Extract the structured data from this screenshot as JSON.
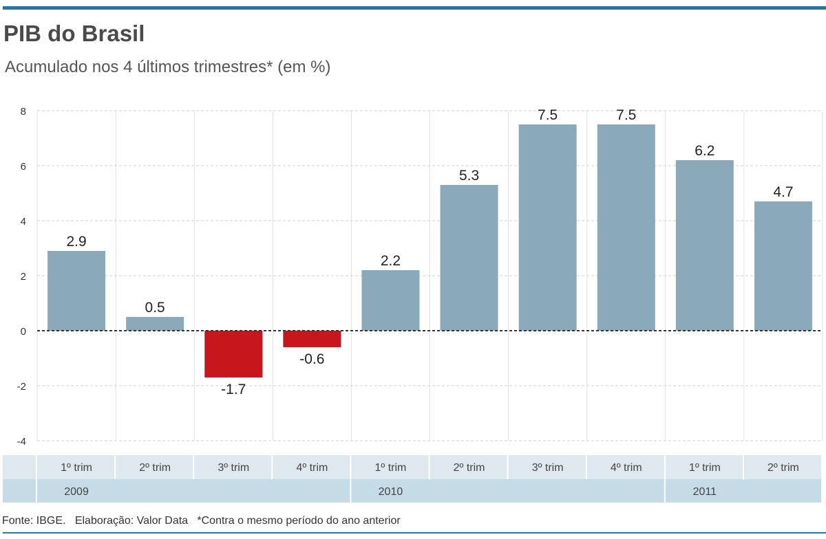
{
  "chart_data": {
    "type": "bar",
    "title": "PIB do Brasil",
    "subtitle": "Acumulado nos 4 últimos trimestres* (em %)",
    "categories": [
      "1º trim",
      "2º trim",
      "3º trim",
      "4º trim",
      "1º trim",
      "2º trim",
      "3º trim",
      "4º trim",
      "1º trim",
      "2º trim"
    ],
    "years": [
      {
        "label": "2009",
        "start": 0
      },
      {
        "label": "2010",
        "start": 4
      },
      {
        "label": "2011",
        "start": 8
      }
    ],
    "values": [
      2.9,
      0.5,
      -1.7,
      -0.6,
      2.2,
      5.3,
      7.5,
      7.5,
      6.2,
      4.7
    ],
    "value_labels": [
      "2.9",
      "0.5",
      "-1.7",
      "-0.6",
      "2.2",
      "5.3",
      "7.5",
      "7.5",
      "6.2",
      "4.7"
    ],
    "ylim": [
      -4,
      8
    ],
    "yticks": [
      "-4",
      "-2",
      "0",
      "2",
      "4",
      "6",
      "8"
    ],
    "grid": true,
    "colors": {
      "positive": "#8aa9bb",
      "negative": "#c8161d",
      "accent": "#1a7ab5",
      "category_row": "#dfe8ef",
      "year_row": "#c5dbe6"
    }
  },
  "footer": "Fonte: IBGE.   Elaboração: Valor Data   *Contra o mesmo período do ano anterior"
}
